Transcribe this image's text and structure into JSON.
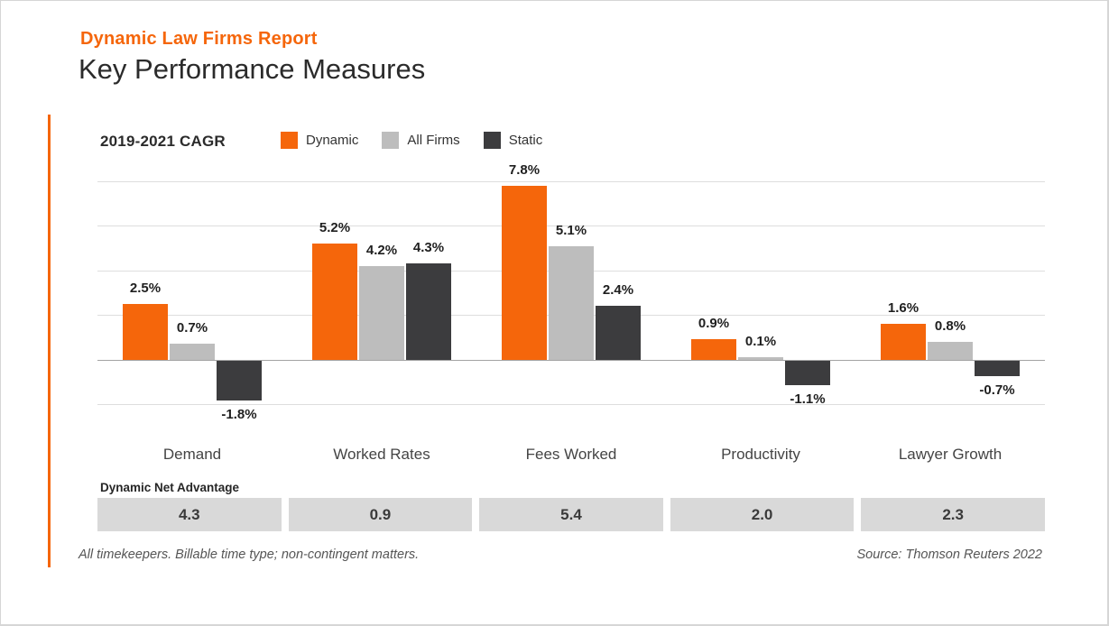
{
  "page": {
    "eyebrow": "Dynamic Law Firms Report",
    "title": "Key Performance Measures"
  },
  "colors": {
    "accent": "#F5660B",
    "all_firms_gray": "#BDBDBD",
    "static_dark": "#3C3C3E",
    "net_box_gray": "#D9D9D9"
  },
  "chart": {
    "axis_label": "2019-2021 CAGR"
  },
  "chart_data": {
    "type": "bar",
    "title": "Key Performance Measures",
    "subtitle": "2019-2021 CAGR",
    "categories": [
      "Demand",
      "Worked Rates",
      "Fees Worked",
      "Productivity",
      "Lawyer Growth"
    ],
    "series": [
      {
        "name": "Dynamic",
        "color": "#F5660B",
        "values": [
          2.5,
          5.2,
          7.8,
          0.9,
          1.6
        ]
      },
      {
        "name": "All Firms",
        "color": "#BDBDBD",
        "values": [
          0.7,
          4.2,
          5.1,
          0.1,
          0.8
        ]
      },
      {
        "name": "Static",
        "color": "#3C3C3E",
        "values": [
          -1.8,
          4.3,
          2.4,
          -1.1,
          -0.7
        ]
      }
    ],
    "value_labels": [
      [
        "2.5%",
        "5.2%",
        "7.8%",
        "0.9%",
        "1.6%"
      ],
      [
        "0.7%",
        "4.2%",
        "5.1%",
        "0.1%",
        "0.8%"
      ],
      [
        "-1.8%",
        "4.3%",
        "2.4%",
        "-1.1%",
        "-0.7%"
      ]
    ],
    "value_suffix": "%",
    "ylim": [
      -2,
      8
    ],
    "gridline_step": 2,
    "grid": true,
    "legend_position": "top"
  },
  "net_advantage": {
    "label": "Dynamic Net Advantage",
    "values": [
      "4.3",
      "0.9",
      "5.4",
      "2.0",
      "2.3"
    ]
  },
  "footer": {
    "note": "All timekeepers. Billable time type; non-contingent matters.",
    "source": "Source: Thomson Reuters 2022"
  }
}
